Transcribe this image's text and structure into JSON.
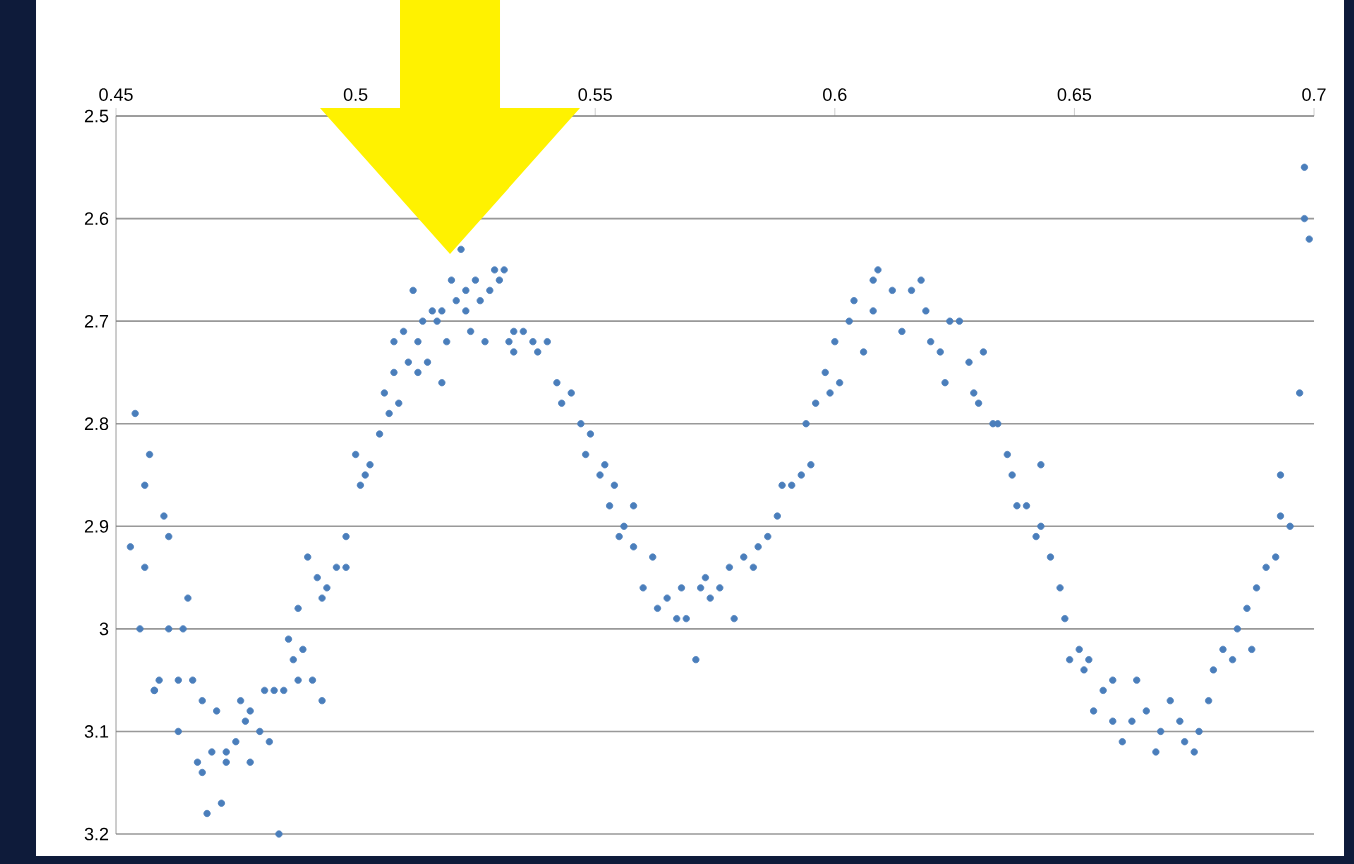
{
  "chart_data": {
    "type": "scatter",
    "marker": "circle",
    "grid": "y",
    "xlim": [
      0.45,
      0.7
    ],
    "xticks": [
      0.45,
      0.5,
      0.55,
      0.6,
      0.65,
      0.7
    ],
    "ylim": [
      3.2,
      2.5
    ],
    "yticks": [
      2.5,
      2.6,
      2.7,
      2.8,
      2.9,
      3,
      3.1,
      3.2
    ],
    "series": [
      {
        "color": "#4a7ebb",
        "x": [
          0.453,
          0.454,
          0.455,
          0.456,
          0.456,
          0.457,
          0.458,
          0.458,
          0.459,
          0.46,
          0.461,
          0.461,
          0.463,
          0.463,
          0.464,
          0.465,
          0.466,
          0.467,
          0.468,
          0.468,
          0.469,
          0.47,
          0.471,
          0.472,
          0.473,
          0.473,
          0.475,
          0.476,
          0.477,
          0.478,
          0.478,
          0.48,
          0.481,
          0.482,
          0.483,
          0.484,
          0.485,
          0.486,
          0.487,
          0.488,
          0.488,
          0.489,
          0.49,
          0.491,
          0.492,
          0.493,
          0.493,
          0.494,
          0.496,
          0.498,
          0.498,
          0.5,
          0.501,
          0.502,
          0.503,
          0.505,
          0.506,
          0.507,
          0.508,
          0.508,
          0.509,
          0.51,
          0.511,
          0.512,
          0.513,
          0.513,
          0.514,
          0.515,
          0.516,
          0.517,
          0.518,
          0.518,
          0.519,
          0.52,
          0.521,
          0.522,
          0.523,
          0.523,
          0.524,
          0.525,
          0.526,
          0.527,
          0.528,
          0.529,
          0.53,
          0.531,
          0.532,
          0.533,
          0.533,
          0.535,
          0.537,
          0.538,
          0.54,
          0.542,
          0.543,
          0.545,
          0.547,
          0.548,
          0.549,
          0.551,
          0.552,
          0.553,
          0.554,
          0.555,
          0.556,
          0.558,
          0.558,
          0.56,
          0.562,
          0.563,
          0.565,
          0.567,
          0.568,
          0.569,
          0.571,
          0.572,
          0.573,
          0.574,
          0.576,
          0.578,
          0.579,
          0.581,
          0.583,
          0.584,
          0.586,
          0.588,
          0.589,
          0.591,
          0.593,
          0.594,
          0.595,
          0.596,
          0.598,
          0.599,
          0.6,
          0.601,
          0.603,
          0.604,
          0.606,
          0.608,
          0.608,
          0.609,
          0.612,
          0.614,
          0.616,
          0.618,
          0.619,
          0.62,
          0.622,
          0.623,
          0.624,
          0.626,
          0.628,
          0.629,
          0.63,
          0.631,
          0.633,
          0.634,
          0.636,
          0.637,
          0.638,
          0.64,
          0.642,
          0.643,
          0.643,
          0.645,
          0.647,
          0.648,
          0.649,
          0.651,
          0.652,
          0.653,
          0.654,
          0.656,
          0.658,
          0.658,
          0.66,
          0.662,
          0.663,
          0.665,
          0.667,
          0.668,
          0.67,
          0.672,
          0.673,
          0.675,
          0.676,
          0.678,
          0.679,
          0.681,
          0.683,
          0.684,
          0.686,
          0.687,
          0.688,
          0.69,
          0.692,
          0.693,
          0.693,
          0.695,
          0.697,
          0.698,
          0.698,
          0.699
        ],
        "values": [
          2.92,
          2.79,
          3.0,
          2.94,
          2.86,
          2.83,
          3.06,
          3.06,
          3.05,
          2.89,
          3.0,
          2.91,
          3.05,
          3.1,
          3.0,
          2.97,
          3.05,
          3.13,
          3.07,
          3.14,
          3.18,
          3.12,
          3.08,
          3.17,
          3.12,
          3.13,
          3.11,
          3.07,
          3.09,
          3.13,
          3.08,
          3.1,
          3.06,
          3.11,
          3.06,
          3.2,
          3.06,
          3.01,
          3.03,
          3.05,
          2.98,
          3.02,
          2.93,
          3.05,
          2.95,
          2.97,
          3.07,
          2.96,
          2.94,
          2.91,
          2.94,
          2.83,
          2.86,
          2.85,
          2.84,
          2.81,
          2.77,
          2.79,
          2.75,
          2.72,
          2.78,
          2.71,
          2.74,
          2.67,
          2.75,
          2.72,
          2.7,
          2.74,
          2.69,
          2.7,
          2.76,
          2.69,
          2.72,
          2.66,
          2.68,
          2.63,
          2.67,
          2.69,
          2.71,
          2.66,
          2.68,
          2.72,
          2.67,
          2.65,
          2.66,
          2.65,
          2.72,
          2.71,
          2.73,
          2.71,
          2.72,
          2.73,
          2.72,
          2.76,
          2.78,
          2.77,
          2.8,
          2.83,
          2.81,
          2.85,
          2.84,
          2.88,
          2.86,
          2.91,
          2.9,
          2.88,
          2.92,
          2.96,
          2.93,
          2.98,
          2.97,
          2.99,
          2.96,
          2.99,
          3.03,
          2.96,
          2.95,
          2.97,
          2.96,
          2.94,
          2.99,
          2.93,
          2.94,
          2.92,
          2.91,
          2.89,
          2.86,
          2.86,
          2.85,
          2.8,
          2.84,
          2.78,
          2.75,
          2.77,
          2.72,
          2.76,
          2.7,
          2.68,
          2.73,
          2.66,
          2.69,
          2.65,
          2.67,
          2.71,
          2.67,
          2.66,
          2.69,
          2.72,
          2.73,
          2.76,
          2.7,
          2.7,
          2.74,
          2.77,
          2.78,
          2.73,
          2.8,
          2.8,
          2.83,
          2.85,
          2.88,
          2.88,
          2.91,
          2.84,
          2.9,
          2.93,
          2.96,
          2.99,
          3.03,
          3.02,
          3.04,
          3.03,
          3.08,
          3.06,
          3.05,
          3.09,
          3.11,
          3.09,
          3.05,
          3.08,
          3.12,
          3.1,
          3.07,
          3.09,
          3.11,
          3.12,
          3.1,
          3.07,
          3.04,
          3.02,
          3.03,
          3.0,
          2.98,
          3.02,
          2.96,
          2.94,
          2.93,
          2.89,
          2.85,
          2.9,
          2.77,
          2.6,
          2.55,
          2.62
        ]
      }
    ]
  }
}
